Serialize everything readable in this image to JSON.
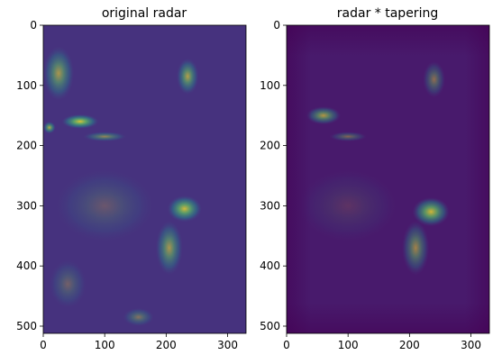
{
  "chart_data": [
    {
      "type": "heatmap",
      "title": "original radar",
      "colormap": "viridis",
      "xlabel": "",
      "ylabel": "",
      "xlim": [
        0,
        330
      ],
      "ylim": [
        512,
        0
      ],
      "xticks": [
        "0",
        "100",
        "200",
        "300"
      ],
      "yticks": [
        "0",
        "100",
        "200",
        "300",
        "400",
        "500"
      ],
      "blobs": [
        {
          "x": 25,
          "y": 80,
          "rx": 25,
          "ry": 45,
          "i": 0.55
        },
        {
          "x": 60,
          "y": 160,
          "rx": 30,
          "ry": 12,
          "i": 0.8
        },
        {
          "x": 100,
          "y": 185,
          "rx": 35,
          "ry": 8,
          "i": 0.45
        },
        {
          "x": 235,
          "y": 85,
          "rx": 18,
          "ry": 30,
          "i": 0.6
        },
        {
          "x": 230,
          "y": 305,
          "rx": 28,
          "ry": 22,
          "i": 0.75
        },
        {
          "x": 205,
          "y": 370,
          "rx": 22,
          "ry": 45,
          "i": 0.55
        },
        {
          "x": 10,
          "y": 170,
          "rx": 10,
          "ry": 10,
          "i": 0.65
        },
        {
          "x": 155,
          "y": 485,
          "rx": 25,
          "ry": 15,
          "i": 0.35
        },
        {
          "x": 100,
          "y": 300,
          "rx": 80,
          "ry": 60,
          "i": 0.2
        },
        {
          "x": 40,
          "y": 430,
          "rx": 30,
          "ry": 40,
          "i": 0.25
        }
      ]
    },
    {
      "type": "heatmap",
      "title": "radar * tapering",
      "colormap": "viridis",
      "xlabel": "",
      "ylabel": "",
      "xlim": [
        0,
        330
      ],
      "ylim": [
        512,
        0
      ],
      "xticks": [
        "0",
        "100",
        "200",
        "300"
      ],
      "yticks": [
        "0",
        "100",
        "200",
        "300",
        "400",
        "500"
      ],
      "blobs": [
        {
          "x": 60,
          "y": 150,
          "rx": 28,
          "ry": 15,
          "i": 0.6
        },
        {
          "x": 100,
          "y": 185,
          "rx": 30,
          "ry": 8,
          "i": 0.35
        },
        {
          "x": 240,
          "y": 90,
          "rx": 18,
          "ry": 30,
          "i": 0.4
        },
        {
          "x": 235,
          "y": 310,
          "rx": 30,
          "ry": 24,
          "i": 0.75
        },
        {
          "x": 210,
          "y": 370,
          "rx": 22,
          "ry": 45,
          "i": 0.5
        },
        {
          "x": 100,
          "y": 300,
          "rx": 80,
          "ry": 60,
          "i": 0.12
        }
      ]
    }
  ]
}
